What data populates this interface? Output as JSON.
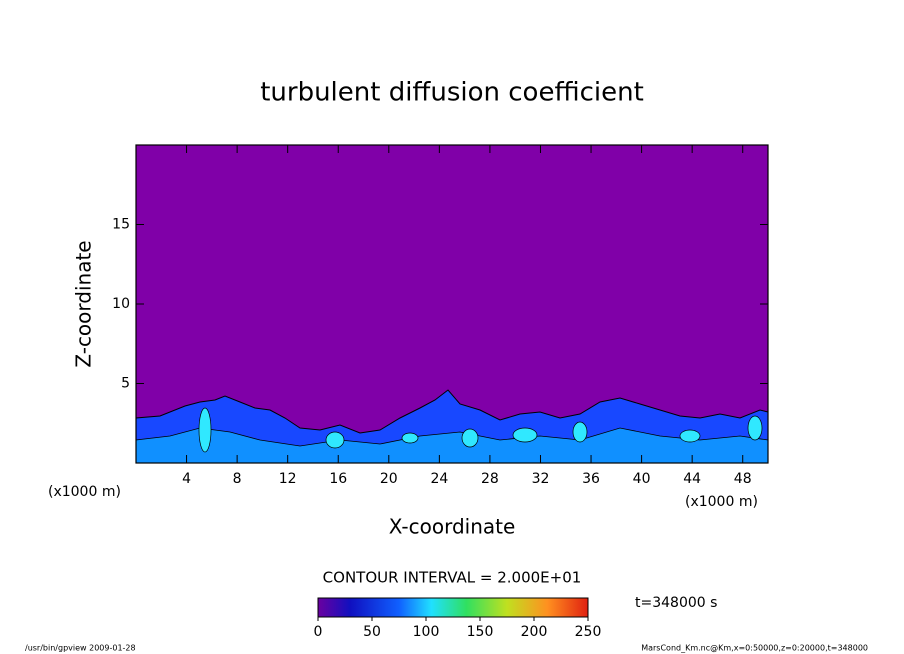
{
  "chart_data": {
    "type": "contour",
    "title": "turbulent diffusion coefficient",
    "x_label": "X-coordinate",
    "y_label": "Z-coordinate",
    "x_unit": "(x1000 m)",
    "y_unit": "(x1000 m)",
    "xlim": [
      0,
      50
    ],
    "xticks": [
      4,
      8,
      12,
      16,
      20,
      24,
      28,
      32,
      36,
      40,
      44,
      48
    ],
    "ylim": [
      0,
      20
    ],
    "yticks": [
      5,
      10,
      15
    ],
    "contour_interval": "CONTOUR INTERVAL = 2.000E+01",
    "colorbar": {
      "lim": [
        0,
        250
      ],
      "ticks": [
        0,
        50,
        100,
        150,
        200,
        250
      ]
    },
    "time_label": "t=348000 s"
  },
  "footer": {
    "left": "/usr/bin/gpview  2009-01-28",
    "right": "MarsCond_Km.nc@Km,x=0:50000,z=0:20000,t=348000"
  }
}
